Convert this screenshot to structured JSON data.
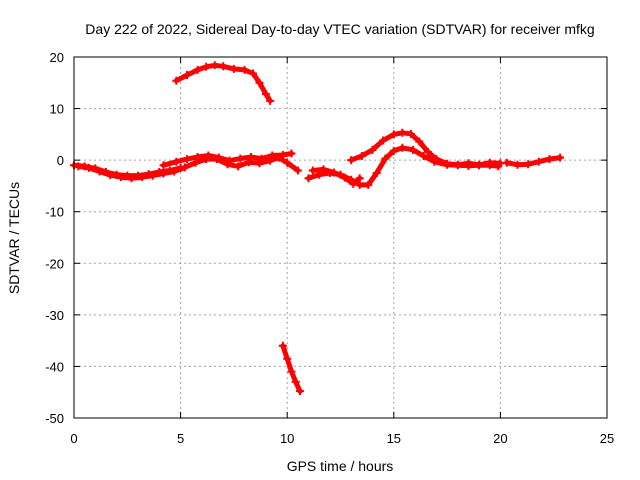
{
  "chart_data": {
    "type": "scatter",
    "title": "Day 222 of 2022, Sidereal Day-to-day VTEC variation (SDTVAR) for receiver mfkg",
    "xlabel": "GPS time / hours",
    "ylabel": "SDTVAR / TECUs",
    "xlim": [
      0,
      25
    ],
    "ylim": [
      -50,
      20
    ],
    "xticks": [
      0,
      5,
      10,
      15,
      20,
      25
    ],
    "yticks": [
      -50,
      -40,
      -30,
      -20,
      -10,
      0,
      10,
      20
    ],
    "grid": true,
    "marker_color": "#ff0000",
    "series": [
      {
        "name": "arc-1",
        "points": [
          [
            0,
            -1
          ],
          [
            0.5,
            -1.2
          ],
          [
            1,
            -1.6
          ],
          [
            1.5,
            -2.3
          ],
          [
            2,
            -2.8
          ],
          [
            2.5,
            -3
          ],
          [
            3,
            -3
          ],
          [
            3.5,
            -2.7
          ],
          [
            4,
            -2.3
          ],
          [
            4.5,
            -2
          ],
          [
            5,
            -1.5
          ]
        ]
      },
      {
        "name": "arc-2",
        "points": [
          [
            0.2,
            -1.2
          ],
          [
            0.7,
            -1.5
          ],
          [
            1.2,
            -2.2
          ],
          [
            1.7,
            -2.9
          ],
          [
            2.2,
            -3.3
          ],
          [
            2.7,
            -3.5
          ],
          [
            3.2,
            -3.3
          ],
          [
            3.7,
            -3
          ],
          [
            4.2,
            -2.6
          ],
          [
            4.7,
            -2.2
          ],
          [
            5.2,
            -1.4
          ],
          [
            5.7,
            -0.5
          ],
          [
            6.2,
            0.2
          ],
          [
            6.7,
            0.2
          ],
          [
            7.2,
            -0.8
          ],
          [
            7.7,
            -1.2
          ],
          [
            8.2,
            -0.4
          ],
          [
            8.7,
            -0.6
          ],
          [
            9.2,
            -0.1
          ],
          [
            9.6,
            0.5
          ],
          [
            10,
            -0.5
          ],
          [
            10.5,
            -2
          ]
        ]
      },
      {
        "name": "arc-3",
        "points": [
          [
            4.2,
            -1
          ],
          [
            4.8,
            -0.3
          ],
          [
            5.3,
            0.2
          ],
          [
            5.8,
            0.6
          ],
          [
            6.3,
            0.9
          ],
          [
            6.8,
            0.5
          ],
          [
            7.3,
            -0.1
          ],
          [
            7.8,
            0.3
          ],
          [
            8.3,
            0.6
          ],
          [
            8.8,
            0.3
          ],
          [
            9.3,
            0.9
          ],
          [
            9.8,
            1
          ],
          [
            10.2,
            1.3
          ]
        ]
      },
      {
        "name": "arc-4",
        "points": [
          [
            4.8,
            15.4
          ],
          [
            5.3,
            16.5
          ],
          [
            5.8,
            17.5
          ],
          [
            6.2,
            18.1
          ],
          [
            6.6,
            18.4
          ],
          [
            7,
            18.2
          ],
          [
            7.5,
            17.7
          ],
          [
            8,
            17.5
          ],
          [
            8.4,
            16.8
          ],
          [
            8.7,
            15
          ],
          [
            9,
            12.8
          ],
          [
            9.2,
            11.5
          ]
        ]
      },
      {
        "name": "arc-5",
        "points": [
          [
            9.8,
            -36
          ],
          [
            10,
            -38.5
          ],
          [
            10.2,
            -41
          ],
          [
            10.4,
            -43
          ],
          [
            10.6,
            -44.8
          ]
        ]
      },
      {
        "name": "arc-6",
        "points": [
          [
            11,
            -3.5
          ],
          [
            11.5,
            -2.8
          ],
          [
            12,
            -2.5
          ],
          [
            12.5,
            -2.8
          ],
          [
            13,
            -3.8
          ],
          [
            13.4,
            -4.8
          ],
          [
            13.8,
            -4.8
          ],
          [
            14.2,
            -2.5
          ],
          [
            14.6,
            0.3
          ],
          [
            15,
            1.8
          ],
          [
            15.4,
            2.4
          ],
          [
            15.9,
            2
          ],
          [
            16.4,
            0.8
          ],
          [
            16.9,
            -0.3
          ],
          [
            17.5,
            -0.9
          ],
          [
            18,
            -1
          ],
          [
            18.5,
            -1.1
          ],
          [
            19,
            -1
          ],
          [
            19.5,
            -1
          ],
          [
            19.9,
            -1.2
          ]
        ]
      },
      {
        "name": "arc-7",
        "points": [
          [
            11.2,
            -2
          ],
          [
            11.7,
            -1.8
          ],
          [
            12.2,
            -2.4
          ],
          [
            12.7,
            -3.4
          ],
          [
            13.1,
            -4.6
          ],
          [
            13.4,
            -3.5
          ]
        ]
      },
      {
        "name": "arc-8",
        "points": [
          [
            13,
            0
          ],
          [
            13.5,
            0.8
          ],
          [
            14,
            2
          ],
          [
            14.5,
            3.8
          ],
          [
            15,
            5
          ],
          [
            15.4,
            5.3
          ],
          [
            15.8,
            5.1
          ],
          [
            16.2,
            3.6
          ],
          [
            16.6,
            1.6
          ],
          [
            17,
            0.2
          ],
          [
            17.5,
            -0.7
          ],
          [
            18,
            -0.9
          ],
          [
            18.5,
            -0.6
          ],
          [
            19,
            -0.9
          ],
          [
            19.5,
            -0.5
          ],
          [
            20,
            -0.6
          ]
        ]
      },
      {
        "name": "arc-9",
        "points": [
          [
            20.3,
            -0.5
          ],
          [
            20.8,
            -0.9
          ],
          [
            21.3,
            -0.8
          ],
          [
            21.8,
            -0.3
          ],
          [
            22.3,
            0.2
          ],
          [
            22.8,
            0.5
          ]
        ]
      }
    ]
  }
}
